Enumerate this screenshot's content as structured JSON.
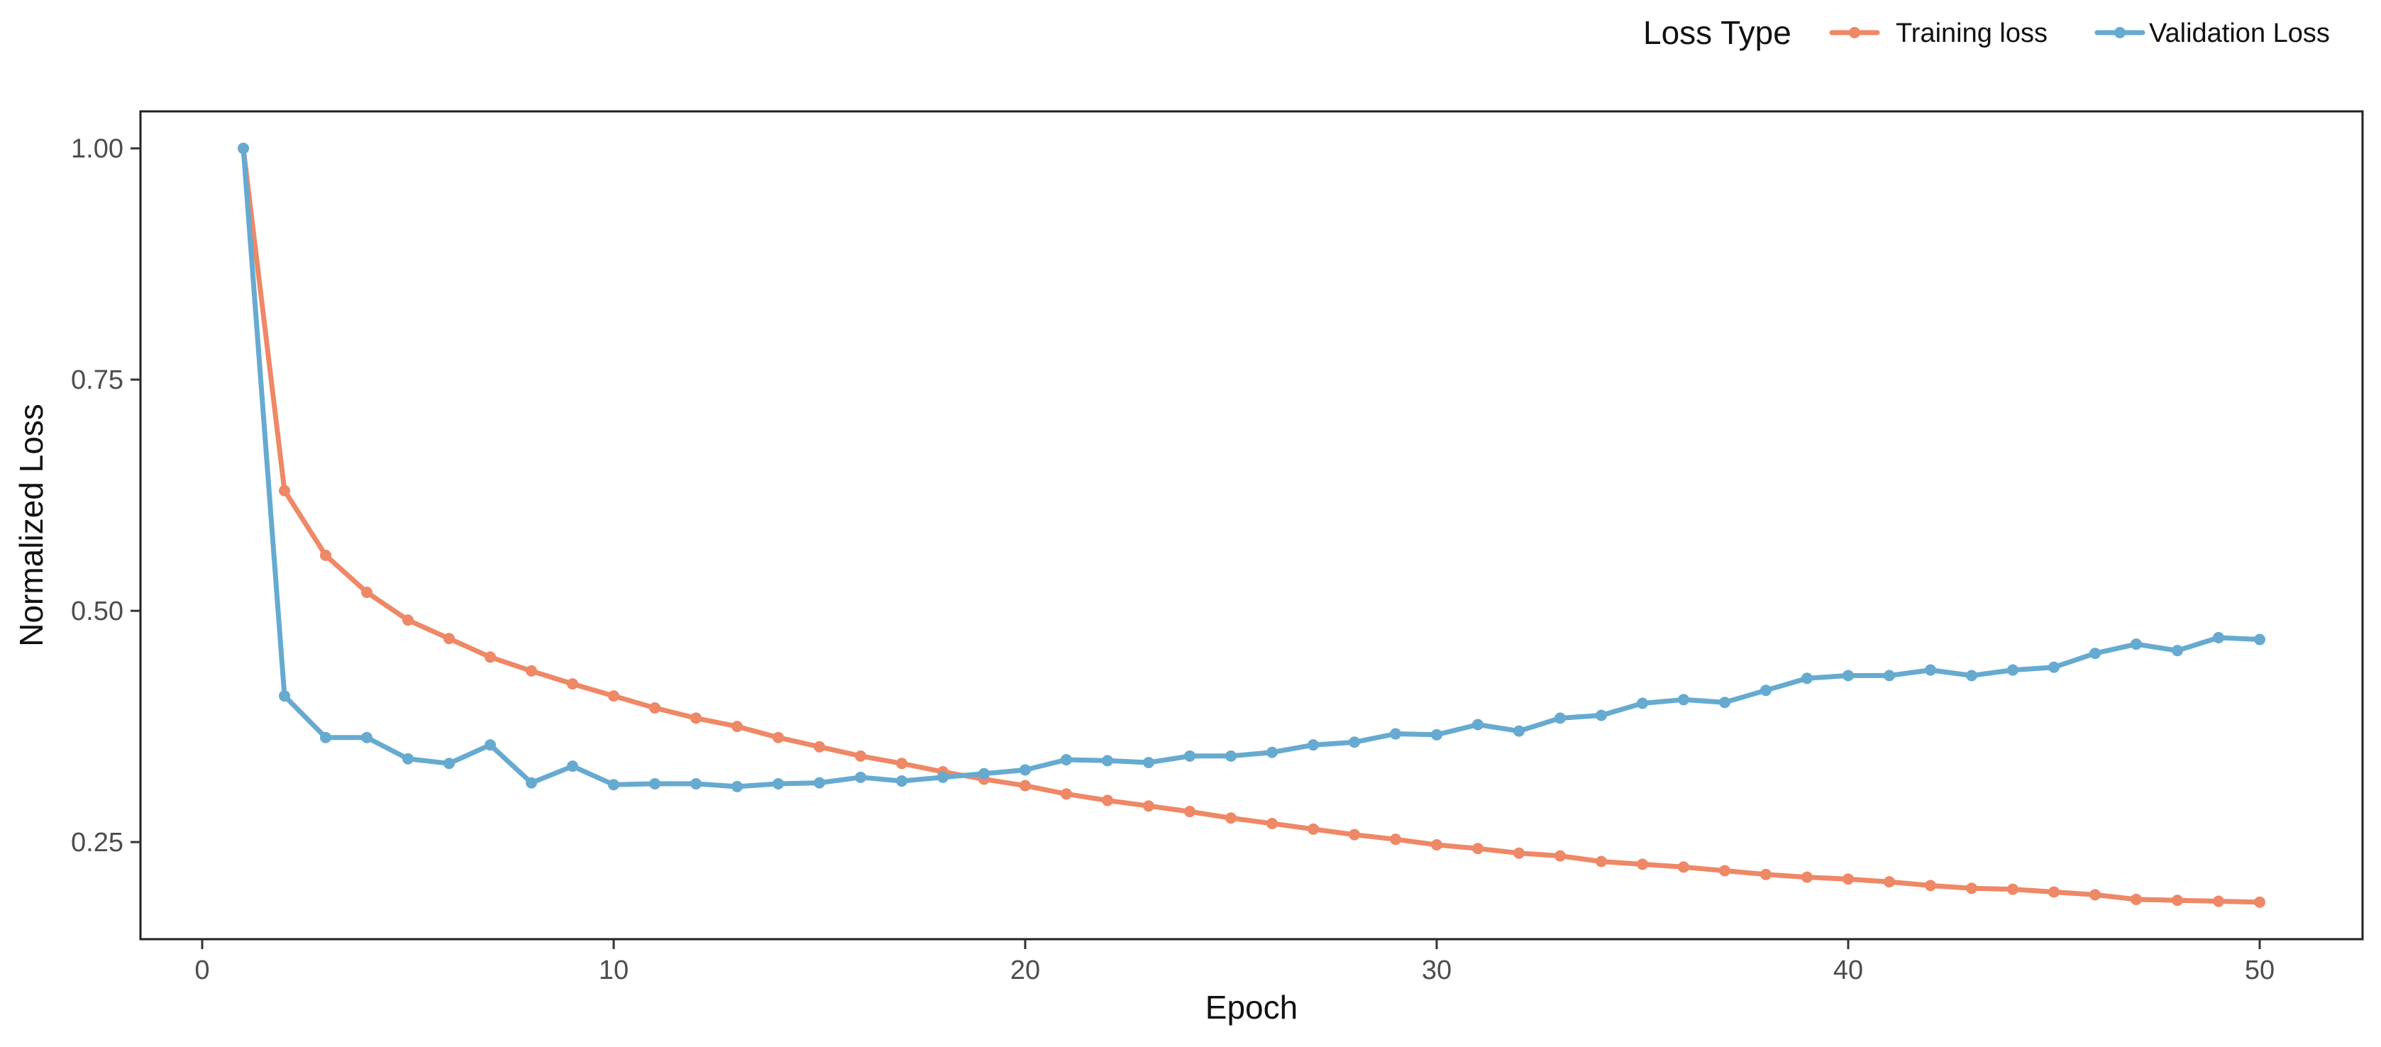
{
  "chart_data": {
    "type": "line",
    "title": "",
    "xlabel": "Epoch",
    "ylabel": "Normalized Loss",
    "xlim": [
      -1.5,
      52.5
    ],
    "ylim": [
      0.145,
      1.04
    ],
    "xticks": [
      0,
      10,
      20,
      30,
      40,
      50
    ],
    "xtick_labels": [
      "0",
      "10",
      "20",
      "30",
      "40",
      "50"
    ],
    "yticks": [
      0.25,
      0.5,
      0.75,
      1.0
    ],
    "ytick_labels": [
      "0.25",
      "0.50",
      "0.75",
      "1.00"
    ],
    "grid": false,
    "legend": {
      "title": "Loss Type",
      "position": "top-right"
    },
    "x": [
      1,
      2,
      3,
      4,
      5,
      6,
      7,
      8,
      9,
      10,
      11,
      12,
      13,
      14,
      15,
      16,
      17,
      18,
      19,
      20,
      21,
      22,
      23,
      24,
      25,
      26,
      27,
      28,
      29,
      30,
      31,
      32,
      33,
      34,
      35,
      36,
      37,
      38,
      39,
      40,
      41,
      42,
      43,
      44,
      45,
      46,
      47,
      48,
      49,
      50
    ],
    "series": [
      {
        "name": "Training loss",
        "color": "#ee8866",
        "values": [
          1.0,
          0.63,
          0.56,
          0.52,
          0.49,
          0.47,
          0.45,
          0.435,
          0.421,
          0.408,
          0.395,
          0.384,
          0.375,
          0.363,
          0.353,
          0.343,
          0.335,
          0.326,
          0.318,
          0.311,
          0.302,
          0.295,
          0.289,
          0.283,
          0.276,
          0.27,
          0.264,
          0.258,
          0.253,
          0.247,
          0.243,
          0.238,
          0.235,
          0.229,
          0.226,
          0.223,
          0.219,
          0.215,
          0.212,
          0.21,
          0.207,
          0.203,
          0.2,
          0.199,
          0.196,
          0.193,
          0.188,
          0.187,
          0.186,
          0.185
        ]
      },
      {
        "name": "Validation Loss",
        "color": "#66aad0",
        "values": [
          1.0,
          0.408,
          0.363,
          0.363,
          0.34,
          0.335,
          0.355,
          0.314,
          0.332,
          0.312,
          0.313,
          0.313,
          0.31,
          0.313,
          0.314,
          0.32,
          0.316,
          0.32,
          0.324,
          0.328,
          0.339,
          0.338,
          0.336,
          0.343,
          0.343,
          0.347,
          0.355,
          0.358,
          0.367,
          0.366,
          0.377,
          0.37,
          0.384,
          0.387,
          0.4,
          0.404,
          0.401,
          0.414,
          0.427,
          0.43,
          0.43,
          0.436,
          0.43,
          0.436,
          0.439,
          0.454,
          0.464,
          0.457,
          0.471,
          0.469
        ]
      }
    ]
  }
}
